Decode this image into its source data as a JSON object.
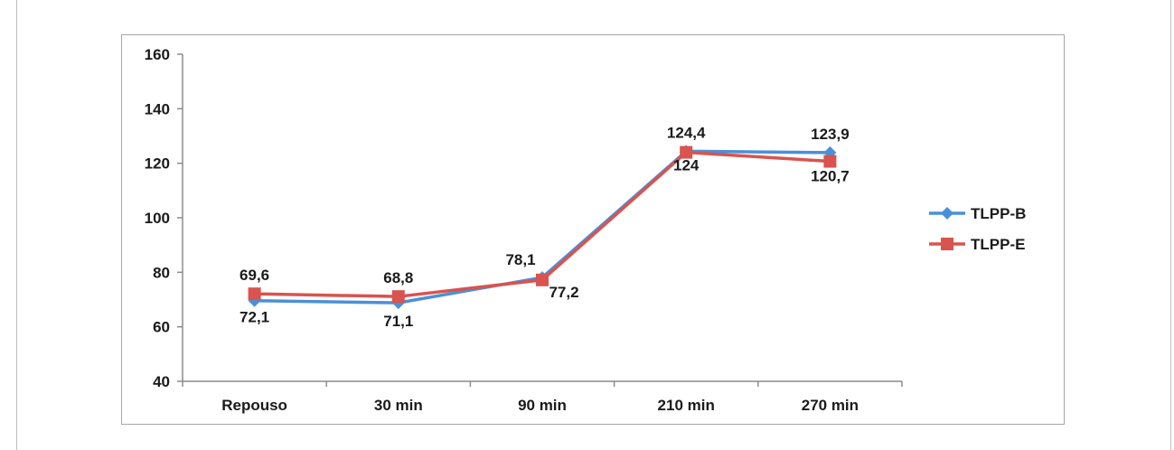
{
  "chart_data": {
    "type": "line",
    "categories": [
      "Repouso",
      "30 min",
      "90 min",
      "210 min",
      "270 min"
    ],
    "ylim": [
      40,
      160
    ],
    "yticks": [
      40,
      60,
      80,
      100,
      120,
      140,
      160
    ],
    "grid": false,
    "legend_position": "right",
    "series": [
      {
        "name": "TLPP-B",
        "color": "#4a90d9",
        "marker": "diamond",
        "values": [
          69.6,
          68.8,
          78.1,
          124.4,
          123.9
        ],
        "labels": [
          "69,6",
          "68,8",
          "78,1",
          "124,4",
          "123,9"
        ],
        "label_position": [
          "above",
          "above",
          "above",
          "above",
          "above"
        ]
      },
      {
        "name": "TLPP-E",
        "color": "#d9534f",
        "marker": "square",
        "values": [
          72.1,
          71.1,
          77.2,
          124,
          120.7
        ],
        "labels": [
          "72,1",
          "71,1",
          "77,2",
          "124",
          "120,7"
        ],
        "label_position": [
          "below",
          "below",
          "below",
          "below",
          "below"
        ]
      }
    ]
  }
}
